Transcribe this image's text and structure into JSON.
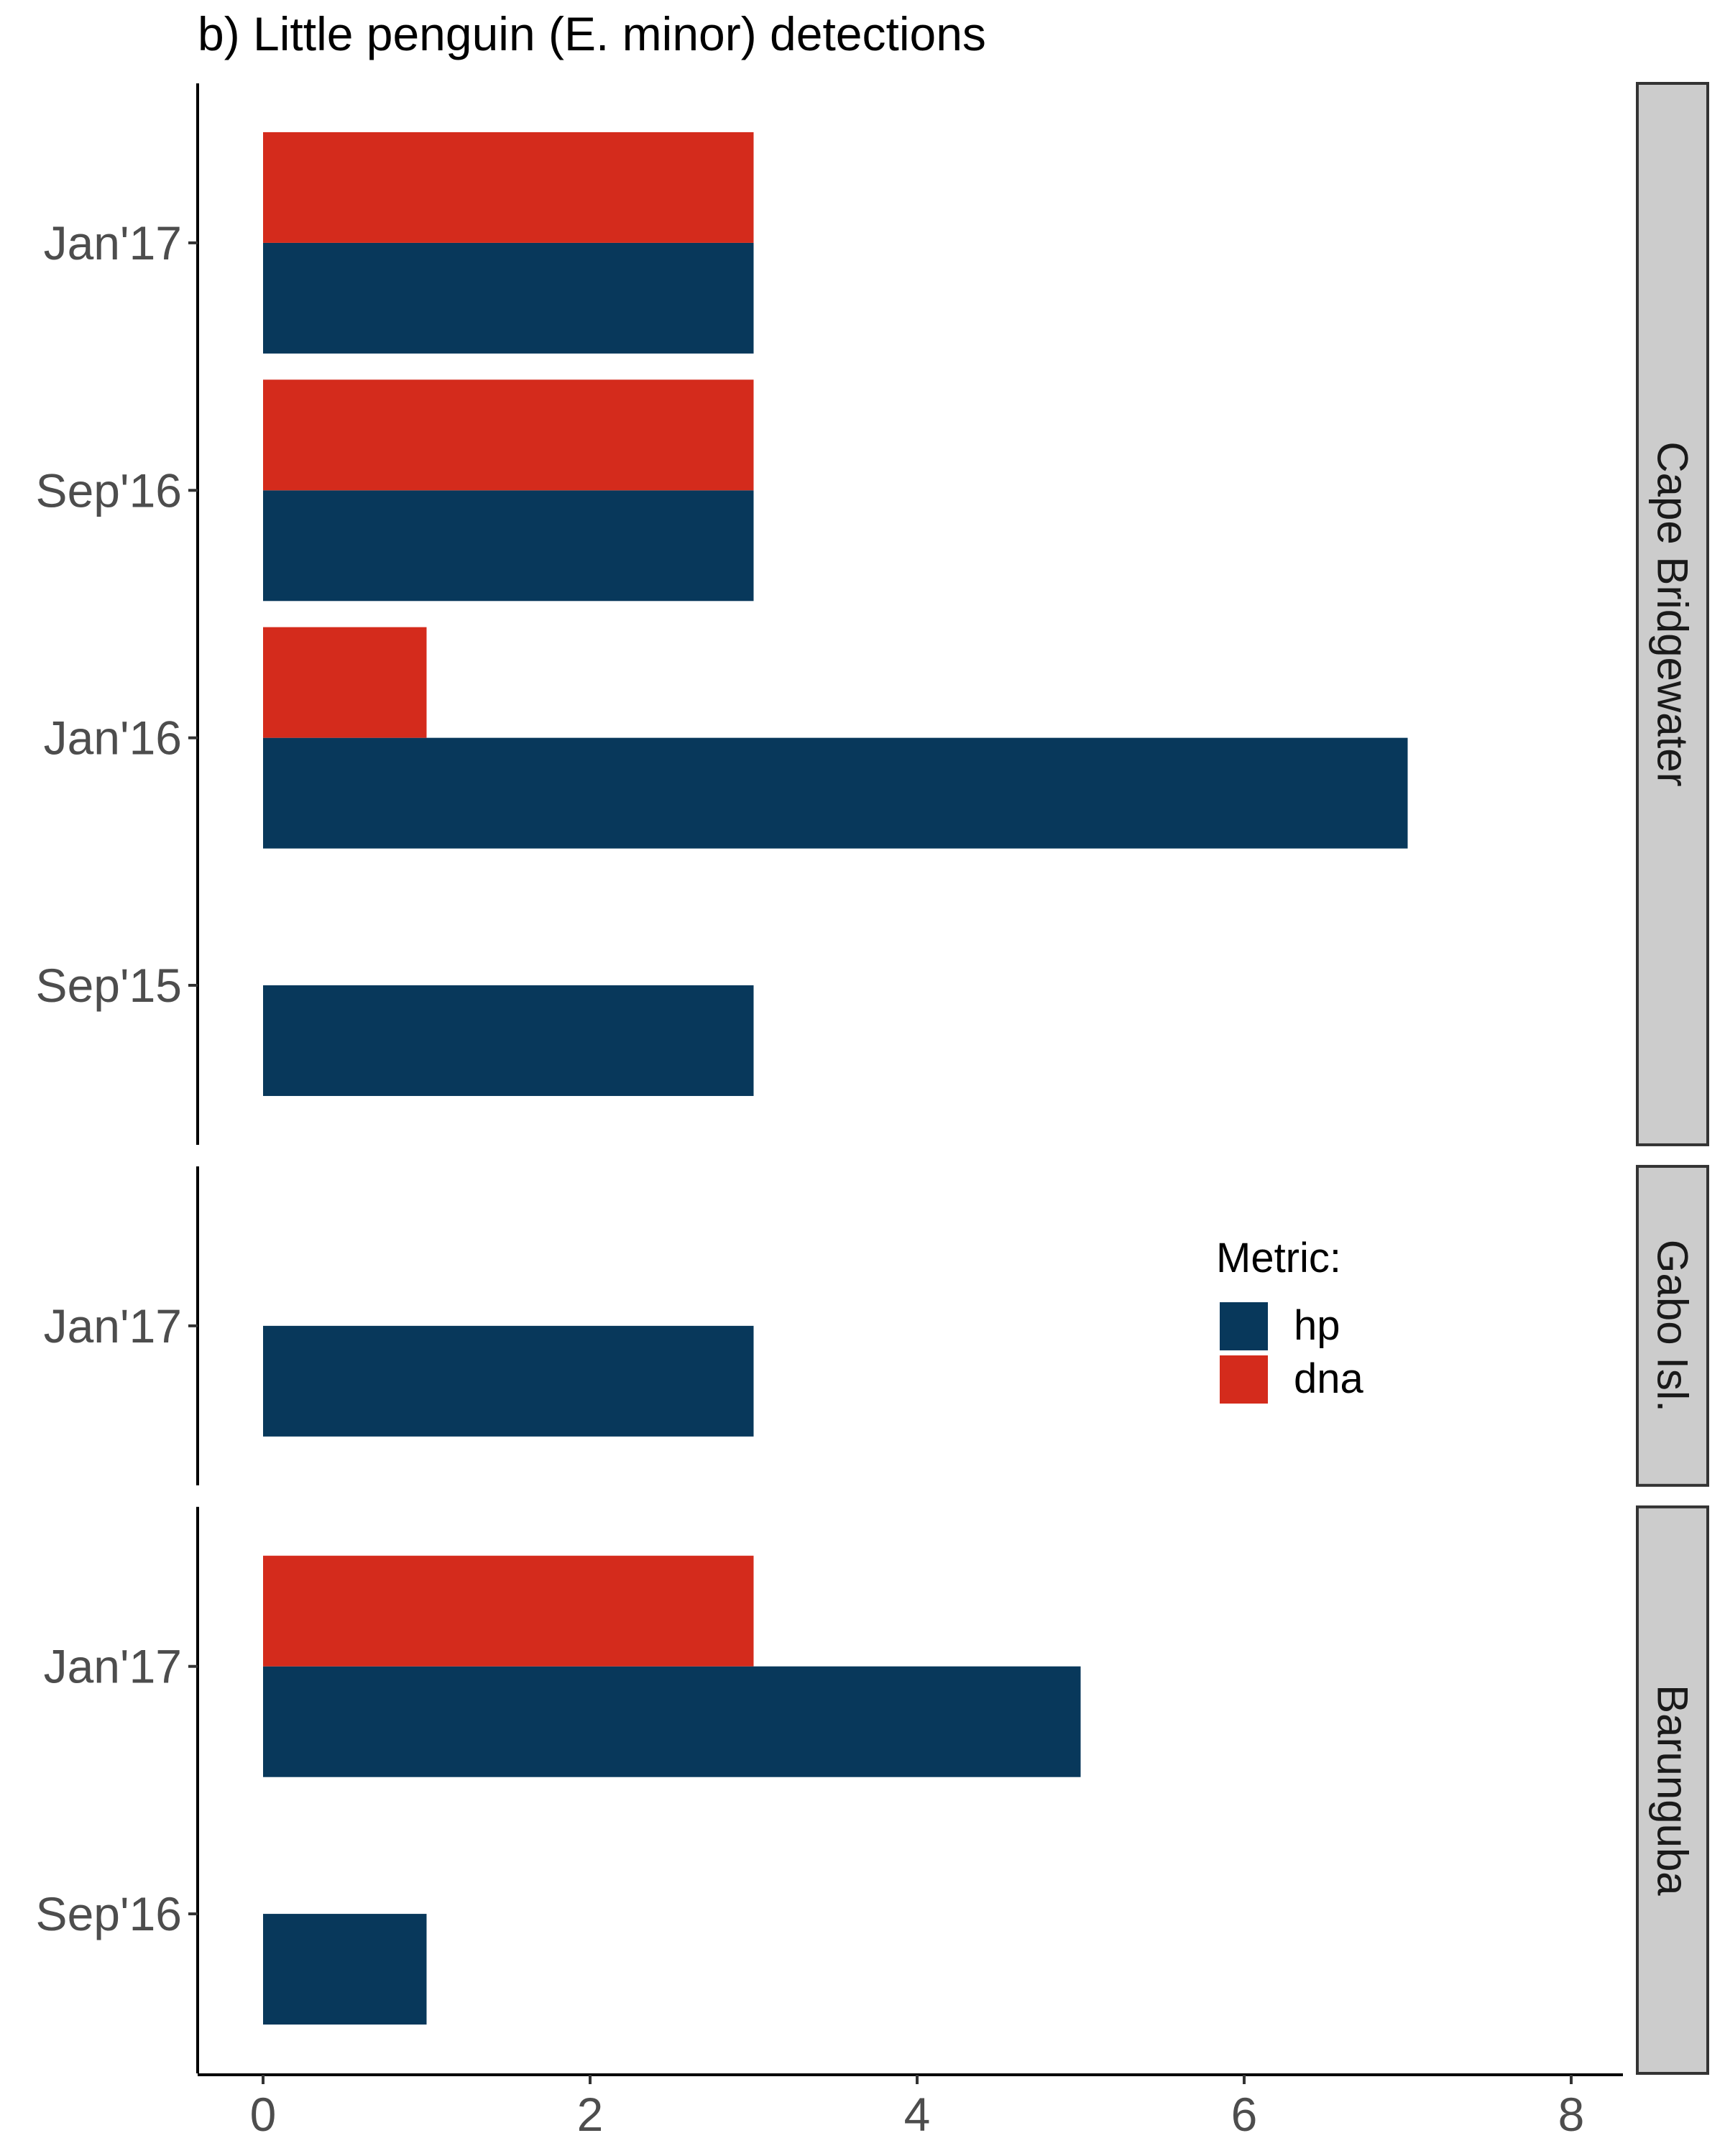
{
  "chart_data": {
    "type": "bar",
    "orientation": "horizontal",
    "stacked": false,
    "title": "b) Little penguin (E. minor) detections",
    "xlabel": "",
    "ylabel": "",
    "xlim": [
      0,
      8
    ],
    "x_ticks": [
      "0",
      "2",
      "4",
      "6",
      "8"
    ],
    "grid": false,
    "legend": {
      "title": "Metric:",
      "placement": "right",
      "entries": [
        {
          "label": "hp",
          "color": "#08385b"
        },
        {
          "label": "dna",
          "color": "#d42b1c"
        }
      ]
    },
    "series": [
      {
        "name": "hp",
        "color": "#08385b"
      },
      {
        "name": "dna",
        "color": "#d42b1c"
      }
    ],
    "panels": [
      {
        "facet": "Cape Bridgewater",
        "categories": [
          "Sep'15",
          "Jan'16",
          "Sep'16",
          "Jan'17"
        ],
        "values": {
          "hp": [
            3,
            7,
            3,
            3
          ],
          "dna": [
            0,
            1,
            3,
            3
          ]
        }
      },
      {
        "facet": "Gabo Isl.",
        "categories": [
          "Jan'17"
        ],
        "values": {
          "hp": [
            3
          ],
          "dna": [
            0
          ]
        }
      },
      {
        "facet": "Barunguba",
        "categories": [
          "Sep'16",
          "Jan'17"
        ],
        "values": {
          "hp": [
            1,
            5
          ],
          "dna": [
            0,
            3
          ]
        }
      }
    ]
  }
}
